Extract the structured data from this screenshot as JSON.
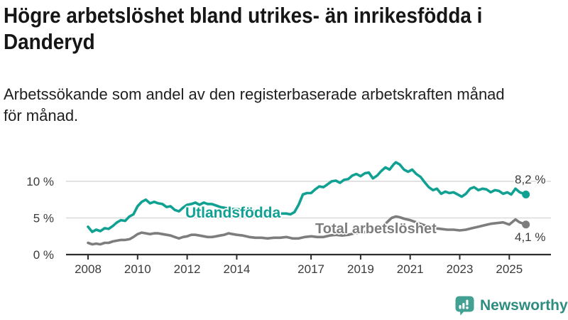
{
  "header": {
    "title_lines": [
      "Högre arbetslöshet bland utrikes- än inrikesfödda i",
      "Danderyd"
    ],
    "subtitle_lines": [
      "Arbetssökande som andel av den registerbaserade arbetskraften månad",
      "för månad."
    ]
  },
  "chart_data": {
    "type": "line",
    "title": "Högre arbetslöshet bland utrikes- än inrikesfödda i Danderyd",
    "subtitle": "Arbetssökande som andel av den registerbaserade arbetskraften månad för månad.",
    "unit": "%",
    "xlabel": "",
    "ylabel": "",
    "ylim": [
      0,
      13
    ],
    "x_range": [
      2008,
      2025.67
    ],
    "grid": true,
    "y_gridlines": [
      5,
      10
    ],
    "y_tick_labels": [
      {
        "value": 0,
        "label": "0 %"
      },
      {
        "value": 5,
        "label": "5 %"
      },
      {
        "value": 10,
        "label": "10 %"
      }
    ],
    "x_tick_years": [
      2008,
      2010,
      2012,
      2014,
      2017,
      2019,
      2021,
      2023,
      2025
    ],
    "series": [
      {
        "name": "Utlandsfödda",
        "color": "#10a192",
        "end_label": "8,2 %",
        "end_value": 8.2,
        "points": [
          [
            2008.0,
            3.8
          ],
          [
            2008.17,
            3.1
          ],
          [
            2008.33,
            3.4
          ],
          [
            2008.5,
            3.2
          ],
          [
            2008.67,
            3.6
          ],
          [
            2008.83,
            3.5
          ],
          [
            2009.0,
            3.9
          ],
          [
            2009.17,
            4.4
          ],
          [
            2009.33,
            4.7
          ],
          [
            2009.5,
            4.6
          ],
          [
            2009.67,
            5.2
          ],
          [
            2009.83,
            5.5
          ],
          [
            2010.0,
            6.6
          ],
          [
            2010.17,
            7.2
          ],
          [
            2010.33,
            7.5
          ],
          [
            2010.5,
            7.0
          ],
          [
            2010.67,
            7.2
          ],
          [
            2010.83,
            7.0
          ],
          [
            2011.0,
            6.9
          ],
          [
            2011.17,
            6.5
          ],
          [
            2011.33,
            6.6
          ],
          [
            2011.5,
            6.1
          ],
          [
            2011.67,
            5.9
          ],
          [
            2011.83,
            6.4
          ],
          [
            2012.0,
            6.8
          ],
          [
            2012.17,
            6.9
          ],
          [
            2012.33,
            7.1
          ],
          [
            2012.5,
            6.8
          ],
          [
            2012.67,
            7.1
          ],
          [
            2012.83,
            6.9
          ],
          [
            2013.0,
            6.9
          ],
          [
            2013.17,
            6.7
          ],
          [
            2013.33,
            6.5
          ],
          [
            2013.5,
            6.4
          ],
          [
            2013.67,
            6.3
          ],
          [
            2013.83,
            6.2
          ],
          [
            2014.0,
            6.2
          ],
          [
            2014.25,
            6.1
          ],
          [
            2014.5,
            6.0
          ],
          [
            2014.75,
            5.9
          ],
          [
            2015.0,
            5.9
          ],
          [
            2015.25,
            5.8
          ],
          [
            2015.5,
            5.7
          ],
          [
            2015.75,
            5.6
          ],
          [
            2016.0,
            5.6
          ],
          [
            2016.17,
            5.5
          ],
          [
            2016.33,
            5.8
          ],
          [
            2016.5,
            6.8
          ],
          [
            2016.67,
            8.2
          ],
          [
            2016.83,
            8.4
          ],
          [
            2017.0,
            8.4
          ],
          [
            2017.17,
            8.9
          ],
          [
            2017.33,
            9.3
          ],
          [
            2017.5,
            9.2
          ],
          [
            2017.67,
            9.6
          ],
          [
            2017.83,
            10.0
          ],
          [
            2018.0,
            10.1
          ],
          [
            2018.17,
            9.8
          ],
          [
            2018.33,
            10.2
          ],
          [
            2018.5,
            10.3
          ],
          [
            2018.67,
            10.8
          ],
          [
            2018.83,
            11.0
          ],
          [
            2019.0,
            10.7
          ],
          [
            2019.17,
            11.1
          ],
          [
            2019.33,
            11.2
          ],
          [
            2019.5,
            10.4
          ],
          [
            2019.67,
            10.8
          ],
          [
            2019.83,
            11.4
          ],
          [
            2020.0,
            11.9
          ],
          [
            2020.17,
            11.6
          ],
          [
            2020.33,
            12.3
          ],
          [
            2020.42,
            12.6
          ],
          [
            2020.58,
            12.3
          ],
          [
            2020.75,
            11.6
          ],
          [
            2020.92,
            11.3
          ],
          [
            2021.08,
            11.6
          ],
          [
            2021.25,
            11.0
          ],
          [
            2021.42,
            10.6
          ],
          [
            2021.58,
            9.9
          ],
          [
            2021.75,
            9.2
          ],
          [
            2021.92,
            8.8
          ],
          [
            2022.08,
            9.0
          ],
          [
            2022.25,
            8.3
          ],
          [
            2022.42,
            8.6
          ],
          [
            2022.58,
            8.4
          ],
          [
            2022.75,
            8.5
          ],
          [
            2022.92,
            8.2
          ],
          [
            2023.08,
            7.9
          ],
          [
            2023.25,
            8.3
          ],
          [
            2023.42,
            9.0
          ],
          [
            2023.58,
            9.2
          ],
          [
            2023.75,
            8.8
          ],
          [
            2023.92,
            9.0
          ],
          [
            2024.08,
            8.9
          ],
          [
            2024.25,
            8.5
          ],
          [
            2024.42,
            8.8
          ],
          [
            2024.58,
            8.7
          ],
          [
            2024.75,
            8.3
          ],
          [
            2024.92,
            8.5
          ],
          [
            2025.08,
            8.2
          ],
          [
            2025.25,
            9.0
          ],
          [
            2025.42,
            8.5
          ],
          [
            2025.67,
            8.2
          ]
        ]
      },
      {
        "name": "Total arbetslöshet",
        "color": "#7d7d7d",
        "end_label": "4,1 %",
        "end_value": 4.1,
        "points": [
          [
            2008.0,
            1.6
          ],
          [
            2008.17,
            1.4
          ],
          [
            2008.33,
            1.5
          ],
          [
            2008.5,
            1.4
          ],
          [
            2008.67,
            1.6
          ],
          [
            2008.83,
            1.6
          ],
          [
            2009.0,
            1.8
          ],
          [
            2009.17,
            1.9
          ],
          [
            2009.33,
            2.0
          ],
          [
            2009.5,
            2.0
          ],
          [
            2009.67,
            2.1
          ],
          [
            2009.83,
            2.4
          ],
          [
            2010.0,
            2.8
          ],
          [
            2010.17,
            3.0
          ],
          [
            2010.33,
            2.9
          ],
          [
            2010.5,
            2.8
          ],
          [
            2010.67,
            2.9
          ],
          [
            2010.83,
            2.9
          ],
          [
            2011.0,
            2.8
          ],
          [
            2011.17,
            2.7
          ],
          [
            2011.33,
            2.6
          ],
          [
            2011.5,
            2.4
          ],
          [
            2011.67,
            2.2
          ],
          [
            2011.83,
            2.4
          ],
          [
            2012.0,
            2.5
          ],
          [
            2012.17,
            2.7
          ],
          [
            2012.33,
            2.7
          ],
          [
            2012.5,
            2.6
          ],
          [
            2012.67,
            2.5
          ],
          [
            2012.83,
            2.4
          ],
          [
            2013.0,
            2.4
          ],
          [
            2013.17,
            2.5
          ],
          [
            2013.33,
            2.6
          ],
          [
            2013.5,
            2.7
          ],
          [
            2013.67,
            2.9
          ],
          [
            2013.83,
            2.8
          ],
          [
            2014.0,
            2.7
          ],
          [
            2014.25,
            2.6
          ],
          [
            2014.5,
            2.4
          ],
          [
            2014.75,
            2.3
          ],
          [
            2015.0,
            2.3
          ],
          [
            2015.25,
            2.2
          ],
          [
            2015.5,
            2.3
          ],
          [
            2015.75,
            2.3
          ],
          [
            2016.0,
            2.4
          ],
          [
            2016.25,
            2.2
          ],
          [
            2016.5,
            2.2
          ],
          [
            2016.75,
            2.4
          ],
          [
            2017.0,
            2.5
          ],
          [
            2017.25,
            2.4
          ],
          [
            2017.5,
            2.4
          ],
          [
            2017.75,
            2.6
          ],
          [
            2018.0,
            2.7
          ],
          [
            2018.25,
            2.6
          ],
          [
            2018.5,
            2.7
          ],
          [
            2018.75,
            2.9
          ],
          [
            2019.0,
            3.0
          ],
          [
            2019.25,
            3.1
          ],
          [
            2019.5,
            3.2
          ],
          [
            2019.75,
            3.6
          ],
          [
            2020.0,
            4.2
          ],
          [
            2020.25,
            5.0
          ],
          [
            2020.42,
            5.2
          ],
          [
            2020.58,
            5.1
          ],
          [
            2020.75,
            4.9
          ],
          [
            2021.0,
            4.7
          ],
          [
            2021.25,
            4.4
          ],
          [
            2021.5,
            4.1
          ],
          [
            2021.75,
            3.8
          ],
          [
            2022.0,
            3.6
          ],
          [
            2022.25,
            3.5
          ],
          [
            2022.5,
            3.4
          ],
          [
            2022.75,
            3.4
          ],
          [
            2023.0,
            3.3
          ],
          [
            2023.25,
            3.4
          ],
          [
            2023.5,
            3.6
          ],
          [
            2023.75,
            3.8
          ],
          [
            2024.0,
            4.0
          ],
          [
            2024.25,
            4.2
          ],
          [
            2024.5,
            4.3
          ],
          [
            2024.75,
            4.4
          ],
          [
            2025.0,
            4.1
          ],
          [
            2025.25,
            4.8
          ],
          [
            2025.42,
            4.4
          ],
          [
            2025.67,
            4.1
          ]
        ]
      }
    ],
    "legend_position": "inline-labels-on-lines"
  },
  "footer": {
    "brand": "Newsworthy",
    "brand_color": "#2e8c81",
    "icon_color": "#43a193"
  }
}
